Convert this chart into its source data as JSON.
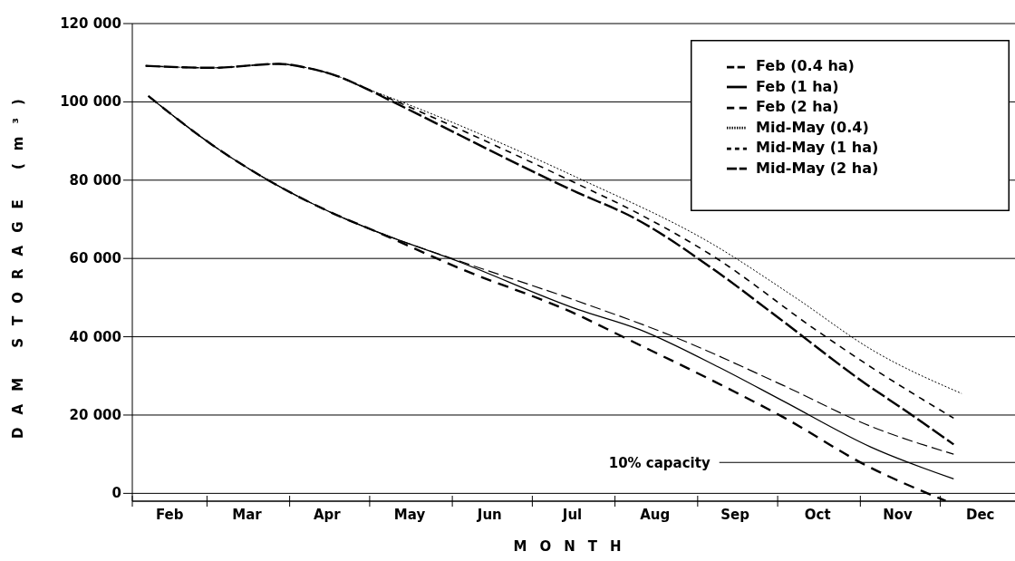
{
  "chart_data": {
    "type": "line",
    "xlabel": "MONTH",
    "ylabel": "DAM STORAGE (m³)",
    "xlim": [
      "--02-01",
      "--12-29"
    ],
    "xticks": [
      {
        "value": "--02-01",
        "label": null
      },
      {
        "value": "--02-15",
        "label": "Feb"
      },
      {
        "value": "--03-01",
        "label": null
      },
      {
        "value": "--03-16",
        "label": "Mar"
      },
      {
        "value": "--04-01",
        "label": null
      },
      {
        "value": "--04-15",
        "label": "Apr"
      },
      {
        "value": "--05-01",
        "label": null
      },
      {
        "value": "--05-16",
        "label": "May"
      },
      {
        "value": "--06-01",
        "label": null
      },
      {
        "value": "--06-15",
        "label": "Jun"
      },
      {
        "value": "--07-01",
        "label": null
      },
      {
        "value": "--07-16",
        "label": "Jul"
      },
      {
        "value": "--08-01",
        "label": null
      },
      {
        "value": "--08-16",
        "label": "Aug"
      },
      {
        "value": "--09-01",
        "label": null
      },
      {
        "value": "--09-15",
        "label": "Sep"
      },
      {
        "value": "--10-01",
        "label": null
      },
      {
        "value": "--10-16",
        "label": "Oct"
      },
      {
        "value": "--11-01",
        "label": null
      },
      {
        "value": "--11-15",
        "label": "Nov"
      },
      {
        "value": "--12-01",
        "label": null
      },
      {
        "value": "--12-16",
        "label": "Dec"
      }
    ],
    "ylim": [
      -2000,
      120000
    ],
    "yticks": [
      0,
      {
        "value": 20000,
        "label": "20 000"
      },
      {
        "value": 40000,
        "label": "40 000"
      },
      {
        "value": 60000,
        "label": "60 000"
      },
      {
        "value": 80000,
        "label": "80 000"
      },
      {
        "value": 100000,
        "label": "100 000"
      },
      {
        "value": 120000,
        "label": "120 000"
      }
    ],
    "grid": "y",
    "legend": "top right",
    "marker": "none",
    "ref_lines": [
      {
        "axis": "y",
        "value": 7900,
        "label": "10% capacity",
        "color": "#000000"
      }
    ],
    "series": [
      {
        "name": "Feb (0.4 ha)",
        "color": "#000000",
        "line_style": "dashed",
        "x": [
          "--02-07",
          "--03-03",
          "--03-26",
          "--04-17",
          "--05-03",
          "--06-03",
          "--07-18",
          "--08-22",
          "--10-03",
          "--11-05",
          "--12-06"
        ],
        "values": [
          101500,
          89000,
          79200,
          71600,
          67000,
          59500,
          49100,
          40300,
          27600,
          17100,
          10000
        ]
      },
      {
        "name": "Feb (1 ha)",
        "color": "#000000",
        "line_style": "solid",
        "x": [
          "--02-07",
          "--03-03",
          "--03-26",
          "--04-17",
          "--05-03",
          "--06-03",
          "--07-18",
          "--08-10",
          "--09-09",
          "--10-03",
          "--11-05",
          "--12-06"
        ],
        "values": [
          101500,
          89000,
          79200,
          71600,
          67000,
          59300,
          47000,
          41900,
          32200,
          23600,
          11800,
          3700
        ]
      },
      {
        "name": "Feb (2 ha)",
        "color": "#000000",
        "line_style": "dashed",
        "x": [
          "--02-07",
          "--03-03",
          "--03-26",
          "--04-17",
          "--05-03",
          "--06-03",
          "--07-18",
          "--08-03",
          "--09-15",
          "--10-03",
          "--11-03",
          "--12-03"
        ],
        "values": [
          101500,
          89000,
          79200,
          71600,
          67000,
          57700,
          45600,
          40300,
          25900,
          19500,
          7200,
          -1900
        ]
      },
      {
        "name": "Mid-May (0.4)",
        "color": "#000000",
        "line_style": "dotted",
        "x": [
          "--02-06",
          "--03-03",
          "--03-28",
          "--04-06",
          "--04-20",
          "--04-29",
          "--05-08",
          "--07-18",
          "--09-07",
          "--10-07",
          "--11-06",
          "--12-09"
        ],
        "values": [
          109200,
          108700,
          109700,
          108900,
          106300,
          103600,
          101300,
          80600,
          63500,
          50300,
          36400,
          25500
        ]
      },
      {
        "name": "Mid-May (1 ha)",
        "color": "#000000",
        "line_style": "dashed",
        "x": [
          "--02-06",
          "--03-03",
          "--03-28",
          "--04-06",
          "--04-20",
          "--04-29",
          "--05-08",
          "--07-18",
          "--08-08",
          "--09-07",
          "--10-15",
          "--11-04",
          "--12-06"
        ],
        "values": [
          109200,
          108700,
          109700,
          108900,
          106300,
          103600,
          101000,
          79000,
          72100,
          60500,
          41900,
          32700,
          19200
        ]
      },
      {
        "name": "Mid-May (2 ha)",
        "color": "#000000",
        "line_style": "dashed",
        "x": [
          "--02-06",
          "--03-03",
          "--03-28",
          "--04-06",
          "--04-20",
          "--04-29",
          "--05-08",
          "--07-18",
          "--08-08",
          "--09-07",
          "--10-01",
          "--11-03",
          "--11-18",
          "--12-06"
        ],
        "values": [
          109200,
          108700,
          109700,
          108900,
          106300,
          103600,
          100600,
          76800,
          70400,
          57200,
          45000,
          28000,
          21100,
          12500
        ]
      }
    ]
  }
}
